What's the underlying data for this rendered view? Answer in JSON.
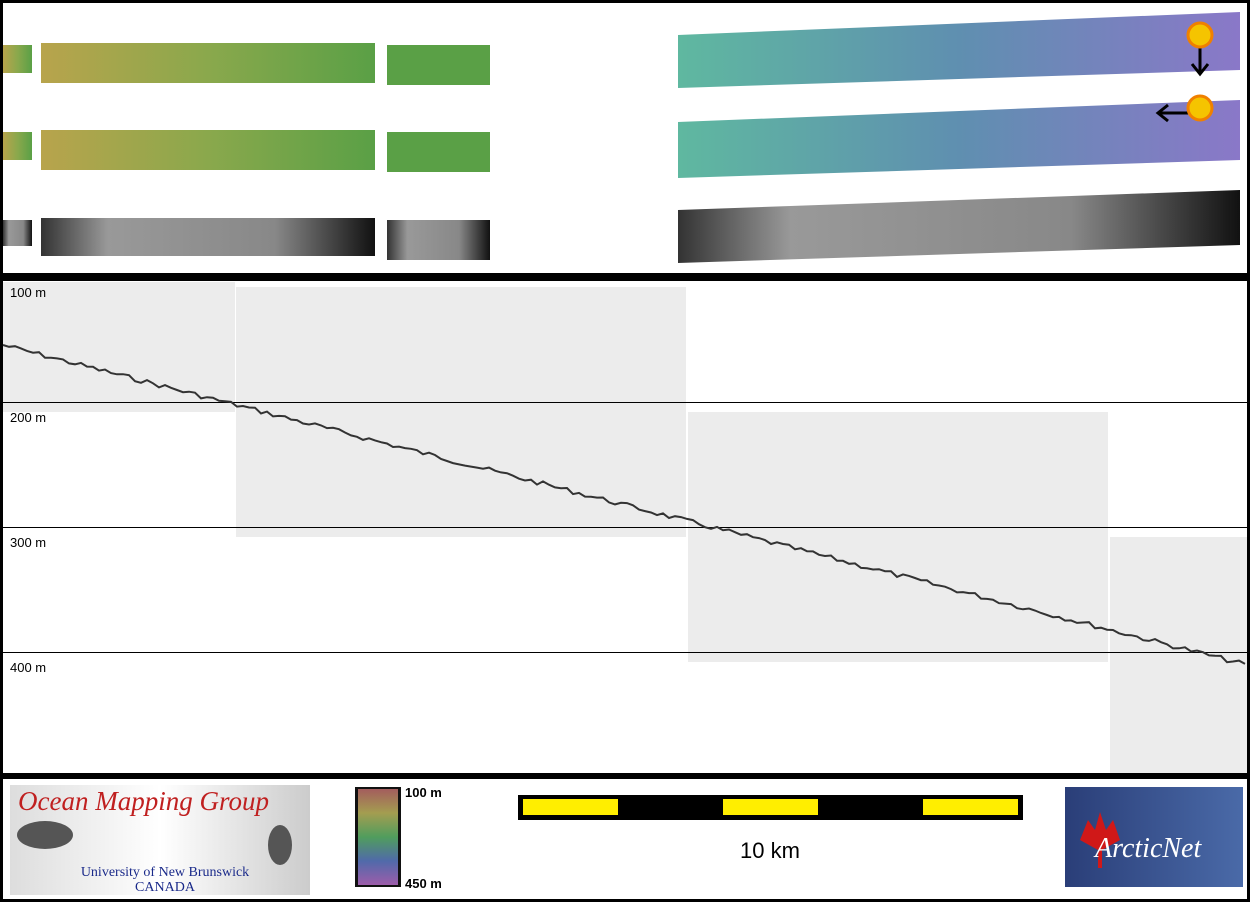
{
  "depth_profile": {
    "depth_labels": [
      "100 m",
      "200 m",
      "300 m",
      "400 m"
    ]
  },
  "footer": {
    "logo": {
      "title": "Ocean Mapping Group",
      "institution": "University of New Brunswick",
      "country": "CANADA"
    },
    "colorbar": {
      "top_label": "100 m",
      "bottom_label": "450 m"
    },
    "scale_bar": {
      "label": "10 km"
    },
    "partner_logo": {
      "name": "ArcticNet"
    }
  }
}
